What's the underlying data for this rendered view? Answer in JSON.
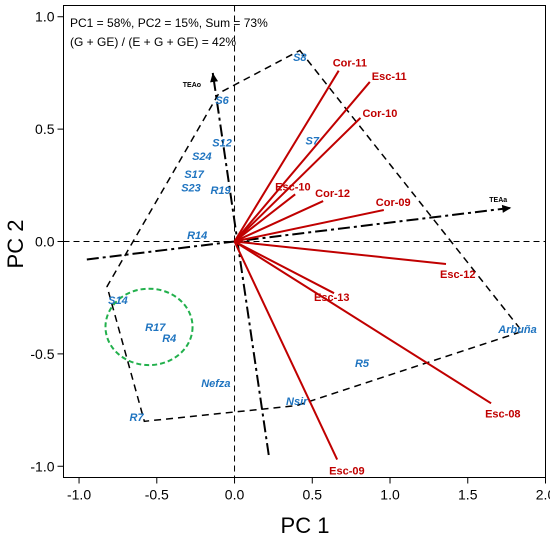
{
  "chart_data": {
    "type": "scatter",
    "xlabel": "PC 1",
    "ylabel": "PC 2",
    "xlim": [
      -1.1,
      2.0
    ],
    "ylim": [
      -1.05,
      1.05
    ],
    "xticks": [
      -1.0,
      -0.5,
      0.0,
      0.5,
      1.0,
      1.5,
      2.0
    ],
    "yticks": [
      -1.0,
      -0.5,
      0.0,
      0.5,
      1.0
    ],
    "xtick_labels": [
      "-1.0",
      "-0.5",
      "0.0",
      "0.5",
      "1.0",
      "1.5",
      "2.0"
    ],
    "ytick_labels": [
      "-1.0",
      "-0.5",
      "0.0",
      "0.5",
      "1.0"
    ],
    "annotations": [
      "PC1 =  58%, PC2 = 15%, Sum = 73%",
      "(G + GE) / (E + G + GE) = 42%"
    ],
    "genotypes": [
      {
        "label": "S8",
        "x": 0.42,
        "y": 0.82
      },
      {
        "label": "S6",
        "x": -0.08,
        "y": 0.63
      },
      {
        "label": "S12",
        "x": -0.08,
        "y": 0.44
      },
      {
        "label": "S24",
        "x": -0.21,
        "y": 0.38
      },
      {
        "label": "S7",
        "x": 0.5,
        "y": 0.45
      },
      {
        "label": "S17",
        "x": -0.26,
        "y": 0.3
      },
      {
        "label": "S23",
        "x": -0.28,
        "y": 0.24
      },
      {
        "label": "R19",
        "x": -0.09,
        "y": 0.23
      },
      {
        "label": "R14",
        "x": -0.24,
        "y": 0.03
      },
      {
        "label": "S14",
        "x": -0.75,
        "y": -0.26
      },
      {
        "label": "R17",
        "x": -0.51,
        "y": -0.38
      },
      {
        "label": "R4",
        "x": -0.42,
        "y": -0.43
      },
      {
        "label": "Nefza",
        "x": -0.12,
        "y": -0.63
      },
      {
        "label": "R5",
        "x": 0.82,
        "y": -0.54
      },
      {
        "label": "Nsir",
        "x": 0.4,
        "y": -0.71
      },
      {
        "label": "R7",
        "x": -0.63,
        "y": -0.78
      },
      {
        "label": "Arbuña",
        "x": 1.82,
        "y": -0.39
      }
    ],
    "environments": [
      {
        "label": "Cor-11",
        "x": 0.67,
        "y": 0.76
      },
      {
        "label": "Esc-11",
        "x": 0.87,
        "y": 0.71
      },
      {
        "label": "Cor-10",
        "x": 0.81,
        "y": 0.55
      },
      {
        "label": "Esc-10",
        "x": 0.39,
        "y": 0.21
      },
      {
        "label": "Cor-12",
        "x": 0.57,
        "y": 0.18
      },
      {
        "label": "Cor-09",
        "x": 0.96,
        "y": 0.14
      },
      {
        "label": "Esc-12",
        "x": 1.36,
        "y": -0.1
      },
      {
        "label": "Esc-13",
        "x": 0.64,
        "y": -0.23
      },
      {
        "label": "Esc-08",
        "x": 1.65,
        "y": -0.72
      },
      {
        "label": "Esc-09",
        "x": 0.66,
        "y": -0.97
      }
    ],
    "hull_polygon": [
      [
        0.42,
        0.85
      ],
      [
        1.85,
        -0.4
      ],
      [
        0.4,
        -0.73
      ],
      [
        -0.58,
        -0.8
      ],
      [
        -0.82,
        -0.2
      ],
      [
        -0.1,
        0.66
      ]
    ],
    "ellipse": {
      "center": [
        -0.55,
        -0.38
      ],
      "semi_axis_x": 0.28,
      "semi_axis_y": 0.17
    },
    "tea_axes": [
      {
        "label": "TEAa",
        "start": [
          -0.95,
          -0.08
        ],
        "end": [
          1.78,
          0.15
        ]
      },
      {
        "label": "TEAo",
        "start": [
          0.22,
          -0.95
        ],
        "end": [
          -0.14,
          0.75
        ]
      }
    ],
    "tea_labels": [
      "TEAa",
      "TEAo"
    ],
    "colors": {
      "genotype": "#1f74c0",
      "environment": "#c00000",
      "ellipse": "#22b04c",
      "hull": "#000000"
    }
  }
}
